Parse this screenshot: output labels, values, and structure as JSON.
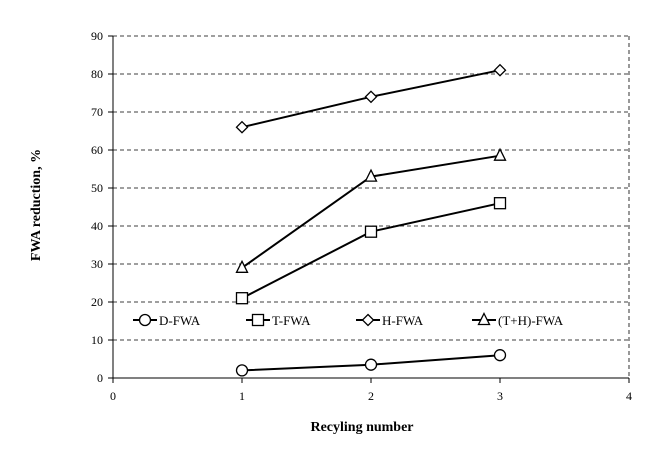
{
  "chart_data": {
    "type": "line",
    "xlabel": "Recyling number",
    "ylabel": "FWA reduction, %",
    "xlim": [
      0,
      4
    ],
    "ylim": [
      0,
      90
    ],
    "xticks": [
      "0",
      "1",
      "2",
      "3",
      "4"
    ],
    "yticks": [
      "0",
      "10",
      "20",
      "30",
      "40",
      "50",
      "60",
      "70",
      "80",
      "90"
    ],
    "grid": "horizontal dashed",
    "legend_position": "inside-left, near bottom",
    "x": [
      1,
      2,
      3
    ],
    "series": [
      {
        "name": "D-FWA",
        "marker": "circle",
        "values": [
          2,
          3.5,
          6
        ]
      },
      {
        "name": "T-FWA",
        "marker": "square",
        "values": [
          21,
          38.5,
          46
        ]
      },
      {
        "name": "H-FWA",
        "marker": "diamond",
        "values": [
          66,
          74,
          81
        ]
      },
      {
        "name": "(T+H)-FWA",
        "marker": "triangle",
        "values": [
          29,
          53,
          58.5
        ]
      }
    ]
  }
}
